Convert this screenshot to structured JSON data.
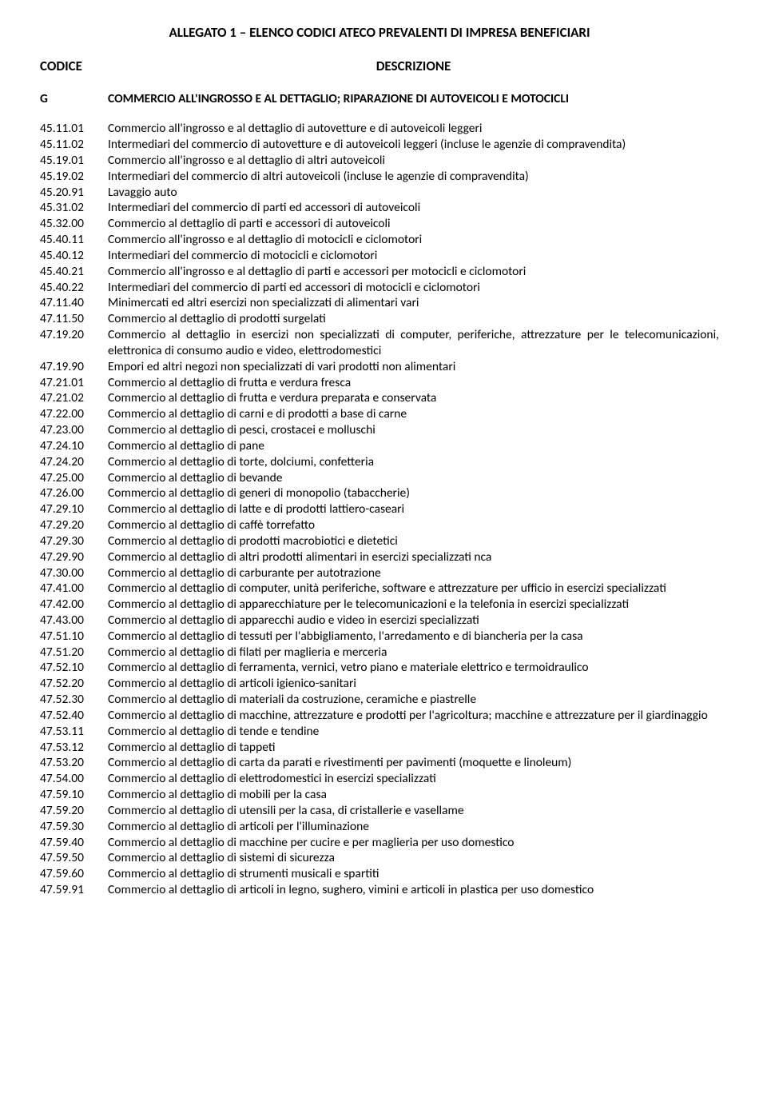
{
  "title": "ALLEGATO 1 – ELENCO CODICI ATECO PREVALENTI DI IMPRESA BENEFICIARI",
  "header": {
    "code": "CODICE",
    "desc": "DESCRIZIONE"
  },
  "section": {
    "code": "G",
    "desc": "COMMERCIO ALL'INGROSSO E AL DETTAGLIO; RIPARAZIONE DI AUTOVEICOLI E MOTOCICLI"
  },
  "items": [
    {
      "c": "45.11.01",
      "d": "Commercio all'ingrosso e al dettaglio di autovetture e di autoveicoli leggeri"
    },
    {
      "c": "45.11.02",
      "d": "Intermediari del commercio di autovetture e di autoveicoli leggeri (incluse le agenzie di compravendita)"
    },
    {
      "c": "45.19.01",
      "d": "Commercio all'ingrosso e al dettaglio di altri autoveicoli"
    },
    {
      "c": "45.19.02",
      "d": "Intermediari del commercio di altri autoveicoli (incluse le agenzie di compravendita)"
    },
    {
      "c": "45.20.91",
      "d": "Lavaggio auto"
    },
    {
      "c": "45.31.02",
      "d": "Intermediari del commercio di parti ed accessori di autoveicoli"
    },
    {
      "c": "45.32.00",
      "d": "Commercio al dettaglio di parti e accessori di autoveicoli"
    },
    {
      "c": "45.40.11",
      "d": "Commercio all'ingrosso e al dettaglio di motocicli e ciclomotori"
    },
    {
      "c": "45.40.12",
      "d": "Intermediari del commercio di motocicli e ciclomotori"
    },
    {
      "c": "45.40.21",
      "d": "Commercio all'ingrosso e al dettaglio di parti e accessori per motocicli e ciclomotori"
    },
    {
      "c": "45.40.22",
      "d": "Intermediari del commercio di parti ed accessori di motocicli e ciclomotori"
    },
    {
      "c": "47.11.40",
      "d": "Minimercati ed altri esercizi non specializzati di alimentari vari"
    },
    {
      "c": "47.11.50",
      "d": "Commercio al dettaglio di prodotti surgelati"
    },
    {
      "c": "47.19.20",
      "d": "Commercio al dettaglio in esercizi non specializzati di computer, periferiche, attrezzature per le telecomunicazioni, elettronica di consumo audio e video, elettrodomestici"
    },
    {
      "c": "47.19.90",
      "d": "Empori ed altri negozi non specializzati di vari prodotti non alimentari"
    },
    {
      "c": "47.21.01",
      "d": "Commercio al dettaglio di frutta e verdura fresca"
    },
    {
      "c": "47.21.02",
      "d": "Commercio al dettaglio di frutta e verdura preparata e conservata"
    },
    {
      "c": "47.22.00",
      "d": "Commercio al dettaglio di carni e di prodotti a base di carne"
    },
    {
      "c": "47.23.00",
      "d": "Commercio al dettaglio di pesci, crostacei e molluschi"
    },
    {
      "c": "47.24.10",
      "d": "Commercio al dettaglio di pane"
    },
    {
      "c": "47.24.20",
      "d": "Commercio al dettaglio di torte, dolciumi, confetteria"
    },
    {
      "c": "47.25.00",
      "d": "Commercio al dettaglio di bevande"
    },
    {
      "c": "47.26.00",
      "d": "Commercio al dettaglio di generi di monopolio (tabaccherie)"
    },
    {
      "c": "47.29.10",
      "d": "Commercio al dettaglio di latte e di prodotti lattiero-caseari"
    },
    {
      "c": "47.29.20",
      "d": "Commercio al dettaglio di caffè torrefatto"
    },
    {
      "c": "47.29.30",
      "d": "Commercio al dettaglio di prodotti macrobiotici e dietetici"
    },
    {
      "c": "47.29.90",
      "d": "Commercio al dettaglio di altri prodotti alimentari in esercizi specializzati nca"
    },
    {
      "c": "47.30.00",
      "d": "Commercio al dettaglio di carburante per autotrazione"
    },
    {
      "c": "47.41.00",
      "d": "Commercio al dettaglio di computer, unità periferiche, software e attrezzature per ufficio in esercizi specializzati"
    },
    {
      "c": "47.42.00",
      "d": "Commercio al dettaglio di apparecchiature per le telecomunicazioni e la telefonia in esercizi specializzati"
    },
    {
      "c": "47.43.00",
      "d": "Commercio al dettaglio di apparecchi audio e video in esercizi specializzati"
    },
    {
      "c": "47.51.10",
      "d": "Commercio al dettaglio di tessuti per l'abbigliamento, l'arredamento e di biancheria per la casa"
    },
    {
      "c": "47.51.20",
      "d": "Commercio al dettaglio di filati per maglieria e merceria"
    },
    {
      "c": "47.52.10",
      "d": "Commercio al dettaglio di ferramenta, vernici, vetro piano e materiale elettrico e termoidraulico"
    },
    {
      "c": "47.52.20",
      "d": "Commercio al dettaglio di articoli igienico-sanitari"
    },
    {
      "c": "47.52.30",
      "d": "Commercio al dettaglio di materiali da costruzione, ceramiche e piastrelle"
    },
    {
      "c": "47.52.40",
      "d": "Commercio al dettaglio di macchine, attrezzature e prodotti per l'agricoltura; macchine e attrezzature per il giardinaggio"
    },
    {
      "c": "47.53.11",
      "d": "Commercio al dettaglio di tende e tendine"
    },
    {
      "c": "47.53.12",
      "d": "Commercio al dettaglio di tappeti"
    },
    {
      "c": "47.53.20",
      "d": "Commercio al dettaglio di carta da parati e rivestimenti per pavimenti (moquette e linoleum)"
    },
    {
      "c": "47.54.00",
      "d": "Commercio al dettaglio di elettrodomestici in esercizi specializzati"
    },
    {
      "c": "47.59.10",
      "d": "Commercio al dettaglio di mobili per la casa"
    },
    {
      "c": "47.59.20",
      "d": "Commercio al dettaglio di utensili per la casa, di cristallerie e vasellame"
    },
    {
      "c": "47.59.30",
      "d": "Commercio al dettaglio di articoli per l'illuminazione"
    },
    {
      "c": "47.59.40",
      "d": "Commercio al dettaglio di macchine per cucire e per maglieria per uso domestico"
    },
    {
      "c": "47.59.50",
      "d": "Commercio al dettaglio di sistemi di sicurezza"
    },
    {
      "c": "47.59.60",
      "d": "Commercio al dettaglio di strumenti musicali e spartiti"
    },
    {
      "c": "47.59.91",
      "d": "Commercio al dettaglio di articoli in legno, sughero, vimini e articoli in plastica per uso domestico"
    }
  ]
}
